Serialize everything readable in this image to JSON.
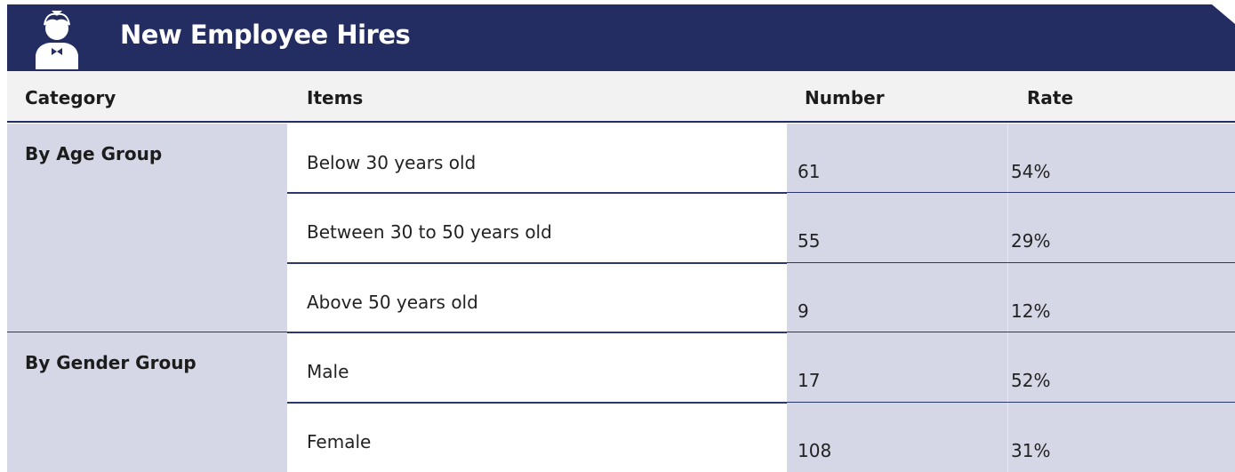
{
  "header": {
    "title": "New Employee Hires"
  },
  "table": {
    "columns": [
      "Category",
      "Items",
      "Number",
      "Rate"
    ],
    "groups": [
      {
        "category": "By Age Group",
        "rows": [
          [
            "Below 30 years old",
            61,
            "54%"
          ],
          [
            "Between 30 to 50 years old",
            55,
            "29%"
          ],
          [
            "Above 50 years old",
            9,
            "12%"
          ]
        ]
      },
      {
        "category": "By Gender Group",
        "rows": [
          [
            "Male",
            17,
            "52%"
          ],
          [
            "Female",
            108,
            "31%"
          ]
        ]
      }
    ]
  }
}
